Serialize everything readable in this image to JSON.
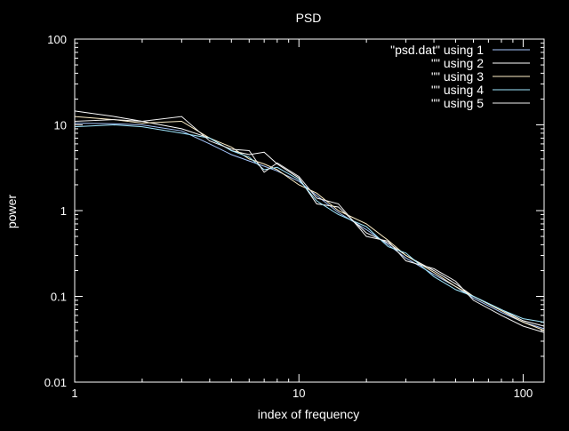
{
  "chart_data": {
    "type": "line",
    "title": "PSD",
    "xlabel": "index of frequency",
    "ylabel": "power",
    "x_scale": "log",
    "y_scale": "log",
    "xlim": [
      1,
      124
    ],
    "ylim": [
      0.01,
      100
    ],
    "x_ticks": [
      {
        "value": 1,
        "label": "1"
      },
      {
        "value": 10,
        "label": "10"
      },
      {
        "value": 100,
        "label": "100"
      }
    ],
    "y_ticks": [
      {
        "value": 0.01,
        "label": "0.01"
      },
      {
        "value": 0.1,
        "label": "0.1"
      },
      {
        "value": 1,
        "label": "1"
      },
      {
        "value": 10,
        "label": "10"
      },
      {
        "value": 100,
        "label": "100"
      }
    ],
    "grid": false,
    "legend_position": "top-right",
    "series": [
      {
        "name": "\"psd.dat\" using 1",
        "color": "#a8c8ff",
        "x": [
          1,
          1.5,
          2,
          3,
          4,
          5,
          6,
          7,
          8,
          10,
          12,
          15,
          20,
          25,
          30,
          40,
          50,
          60,
          80,
          100,
          124
        ],
        "y": [
          10.5,
          10.3,
          10.0,
          8.5,
          6.0,
          4.5,
          3.8,
          3.3,
          2.9,
          2.2,
          1.5,
          0.95,
          0.6,
          0.4,
          0.28,
          0.18,
          0.13,
          0.095,
          0.065,
          0.05,
          0.042
        ]
      },
      {
        "name": "\"\" using 2",
        "color": "#ffffff",
        "x": [
          1,
          1.5,
          2,
          3,
          4,
          5,
          6,
          7,
          8,
          10,
          12,
          15,
          20,
          25,
          30,
          40,
          50,
          60,
          80,
          100,
          124
        ],
        "y": [
          14.5,
          12.5,
          11.0,
          9.0,
          7.0,
          5.0,
          4.5,
          4.8,
          3.5,
          2.4,
          1.2,
          1.1,
          0.55,
          0.42,
          0.3,
          0.2,
          0.14,
          0.1,
          0.07,
          0.052,
          0.045
        ]
      },
      {
        "name": "\"\" using 3",
        "color": "#fff0c8",
        "x": [
          1,
          1.5,
          2,
          3,
          4,
          5,
          6,
          7,
          8,
          10,
          12,
          15,
          20,
          25,
          30,
          40,
          50,
          60,
          80,
          100,
          124
        ],
        "y": [
          12.5,
          11.5,
          10.5,
          11.0,
          7.0,
          5.5,
          4.0,
          3.5,
          3.0,
          2.0,
          1.6,
          1.0,
          0.7,
          0.45,
          0.3,
          0.19,
          0.13,
          0.1,
          0.068,
          0.05,
          0.04
        ]
      },
      {
        "name": "\"\" using 4",
        "color": "#a0e8ff",
        "x": [
          1,
          1.5,
          2,
          3,
          4,
          5,
          6,
          7,
          8,
          10,
          12,
          15,
          20,
          25,
          30,
          40,
          50,
          60,
          80,
          100,
          124
        ],
        "y": [
          9.5,
          10.0,
          9.5,
          8.0,
          7.0,
          5.0,
          4.2,
          3.0,
          3.2,
          2.3,
          1.3,
          0.9,
          0.65,
          0.38,
          0.32,
          0.17,
          0.12,
          0.1,
          0.07,
          0.055,
          0.05
        ]
      },
      {
        "name": "\"\" using 5",
        "color": "#f0f0f0",
        "x": [
          1,
          1.5,
          2,
          3,
          4,
          5,
          6,
          7,
          8,
          10,
          12,
          15,
          20,
          25,
          30,
          40,
          50,
          60,
          80,
          100,
          124
        ],
        "y": [
          11.0,
          11.5,
          11.0,
          12.5,
          6.5,
          5.2,
          5.0,
          2.8,
          3.6,
          2.5,
          1.4,
          1.2,
          0.5,
          0.44,
          0.26,
          0.21,
          0.15,
          0.09,
          0.06,
          0.045,
          0.038
        ]
      }
    ]
  }
}
